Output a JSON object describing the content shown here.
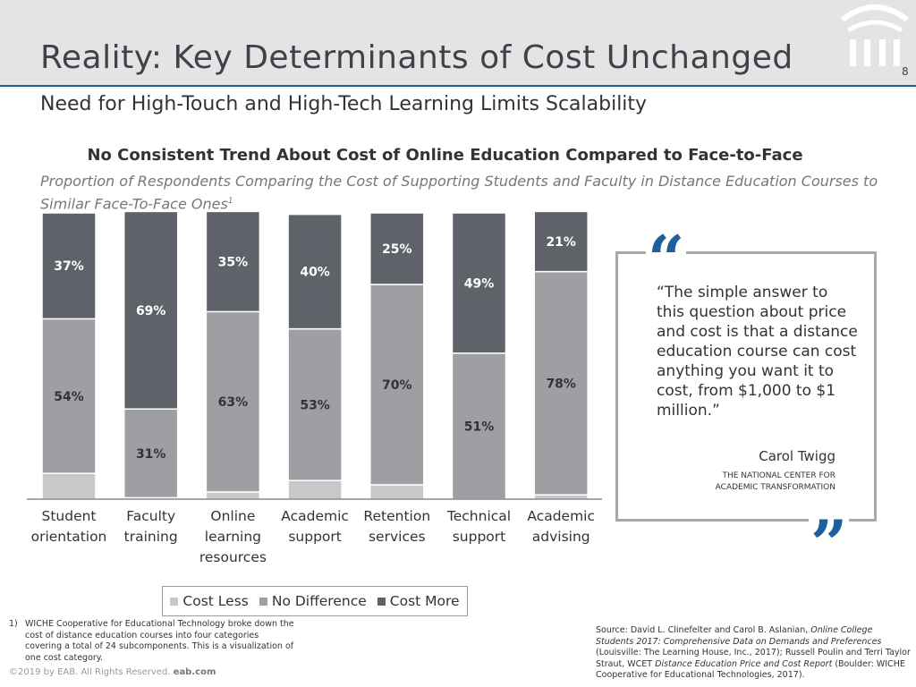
{
  "slide": {
    "title": "Reality: Key Determinants of Cost Unchanged",
    "page_number": "8",
    "subtitle": "Need for High-Touch and High-Tech Learning Limits Scalability"
  },
  "colors": {
    "header_band": "#e3e4e6",
    "accent_blue": "#1f5f9c",
    "cost_less": "#c8c8ca",
    "no_difference": "#9d9fa3",
    "cost_more": "#5f6369"
  },
  "chart_data": {
    "type": "bar",
    "stacked": true,
    "title": "No Consistent Trend About Cost of Online Education Compared to Face-to-Face",
    "subtitle": "Proportion of Respondents Comparing the Cost of Supporting Students and Faculty in Distance Education Courses to Similar Face-To-Face Ones",
    "subtitle_footnote_marker": "1",
    "categories": [
      [
        "Student",
        "orientation"
      ],
      [
        "Faculty",
        "training"
      ],
      [
        "Online",
        "learning",
        "resources"
      ],
      [
        "Academic",
        "support"
      ],
      [
        "Retention",
        "services"
      ],
      [
        "Technical",
        "support"
      ],
      [
        "Academic",
        "advising"
      ]
    ],
    "series": [
      {
        "name": "Cost Less",
        "color": "#c8c8ca",
        "values": [
          9,
          0.5,
          2.5,
          6.5,
          5,
          0,
          1.5
        ],
        "labels": [
          "",
          "",
          "",
          "",
          "",
          "",
          ""
        ]
      },
      {
        "name": "No Difference",
        "color": "#9d9fa3",
        "values": [
          54,
          31,
          63,
          53,
          70,
          51,
          78
        ],
        "labels": [
          "54%",
          "31%",
          "63%",
          "53%",
          "70%",
          "51%",
          "78%"
        ]
      },
      {
        "name": "Cost More",
        "color": "#5f6369",
        "values": [
          37,
          69,
          35,
          40,
          25,
          49,
          21
        ],
        "labels": [
          "37%",
          "69%",
          "35%",
          "40%",
          "25%",
          "49%",
          "21%"
        ]
      }
    ],
    "ylim": [
      0,
      100
    ],
    "grid": false,
    "legend_position": "bottom"
  },
  "legend": {
    "items": [
      "Cost Less",
      "No Difference",
      "Cost More"
    ]
  },
  "quote": {
    "open_mark": "“",
    "close_mark": "”",
    "text": "“The simple answer to this question about price and cost is that a distance education course can cost anything you want it to cost, from $1,000 to $1 million.”",
    "author": "Carol Twigg",
    "org_line1": "THE NATIONAL CENTER FOR",
    "org_line2": "ACADEMIC TRANSFORMATION"
  },
  "footnote": {
    "number": "1)",
    "text": "WICHE Cooperative for Educational Technology broke down the cost of  distance education courses into four categories covering a total of 24 subcomponents. This is a visualization of one cost category."
  },
  "copyright": {
    "text": "©2019 by EAB. All Rights Reserved.",
    "site": "eab.com"
  },
  "source": {
    "prefix": "Source: David L. Clinefelter and Carol B. Aslanian, ",
    "title1": "Online College Students 2017: Comprehensive Data on Demands and Preferences",
    "mid": " (Louisville: The Learning House, Inc., 2017); Russell Poulin and Terri Taylor Straut, WCET ",
    "title2": "Distance Education Price and Cost Report",
    "suffix": " (Boulder: WICHE Cooperative for Educational Technologies, 2017)."
  }
}
